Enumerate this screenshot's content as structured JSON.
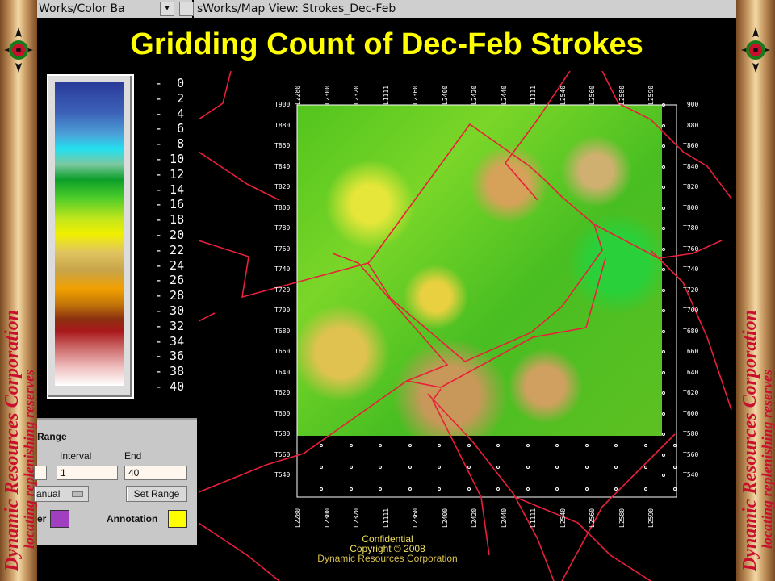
{
  "windows": {
    "colorbar_title": "Works/Color Ba",
    "mapview_title": "sWorks/Map View: Strokes_Dec-Feb"
  },
  "headline": "Gridding Count of Dec-Feb Strokes",
  "banner": {
    "line1": "Dynamic Resources Corporation",
    "line2": "locating replenishing reserves",
    "colors": {
      "dynamic": "#c8102e",
      "resources": "#1a7a1a",
      "corporation": "#1a3fa8"
    }
  },
  "colorbar": {
    "ticks": [
      "0",
      "2",
      "4",
      "6",
      "8",
      "10",
      "12",
      "14",
      "16",
      "18",
      "20",
      "22",
      "24",
      "26",
      "28",
      "30",
      "32",
      "34",
      "36",
      "38",
      "40"
    ]
  },
  "range_panel": {
    "section_label": "Range",
    "interval_label": "Interval",
    "end_label": "End",
    "interval_value": "1",
    "end_value": "40",
    "mode_select": "anual",
    "set_range_label": "Set Range",
    "border_label": "er",
    "annotation_label": "Annotation",
    "border_color": "#a040c0",
    "annotation_color": "#ffff00"
  },
  "map": {
    "y_labels_left": [
      "T900",
      "T880",
      "T860",
      "T840",
      "T820",
      "T800",
      "T780",
      "T760",
      "T740",
      "T720",
      "T700",
      "T680",
      "T660",
      "T640",
      "T620",
      "T600",
      "T580",
      "T560",
      "T540"
    ],
    "y_labels_right": [
      "T900",
      "T880",
      "T860",
      "T840",
      "T820",
      "T800",
      "T780",
      "T760",
      "T740",
      "T720",
      "T700",
      "T680",
      "T660",
      "T640",
      "T620",
      "T600",
      "T580",
      "T560",
      "T540"
    ],
    "x_labels_bottom": [
      "L2280",
      "L2300",
      "L2320",
      "L1111",
      "L2360",
      "L2400",
      "L2420",
      "L2440",
      "L1111",
      "L2540",
      "L2560",
      "L2580",
      "L2590"
    ],
    "x_labels_top": [
      "L2280",
      "L2300",
      "L2320",
      "L1111",
      "L2360",
      "L2400",
      "L2420",
      "L2440",
      "L1111",
      "L2540",
      "L2560",
      "L2580",
      "L2590"
    ]
  },
  "footer": {
    "line1": "Confidential",
    "line2": "Copyright © 2008",
    "line3": "Dynamic Resources Corporation"
  }
}
